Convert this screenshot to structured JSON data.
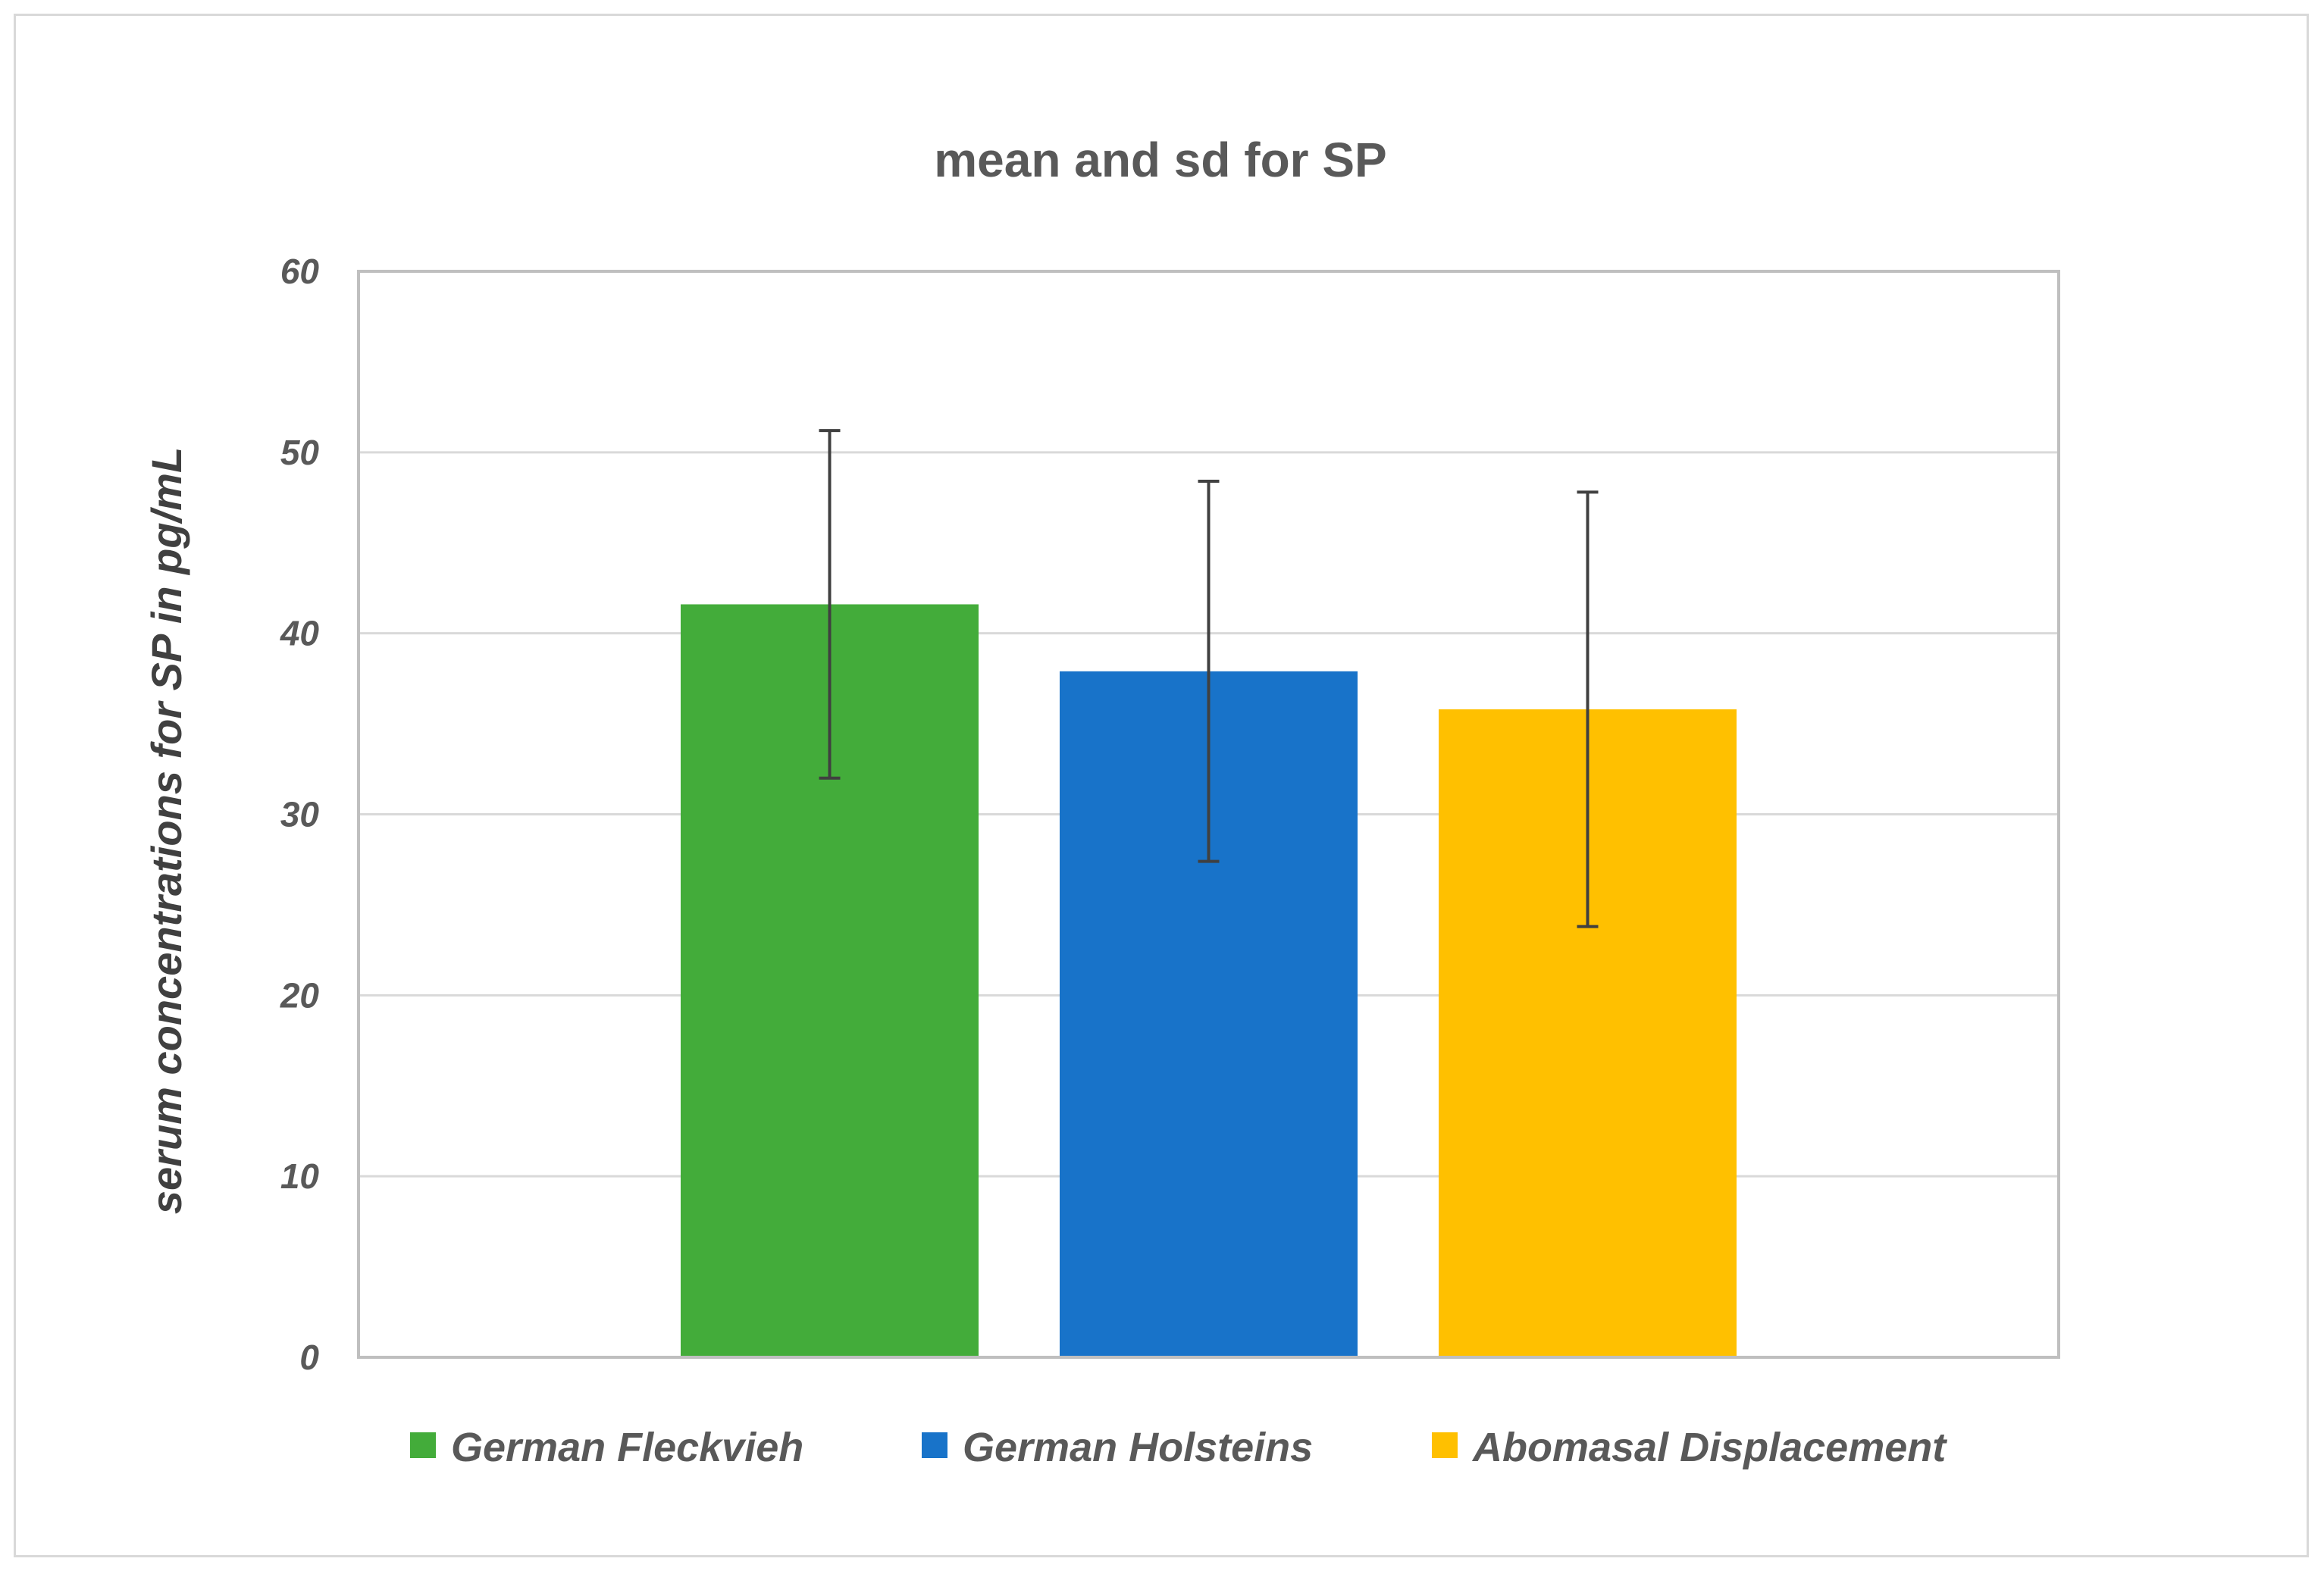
{
  "chart_data": {
    "type": "bar",
    "title": "mean and sd for SP",
    "xlabel": "",
    "ylabel": "serum concentrations for SP in pg/mL",
    "ylim": [
      0,
      60
    ],
    "yticks": [
      "0",
      "10",
      "20",
      "30",
      "40",
      "50",
      "60"
    ],
    "grid": true,
    "legend_position": "bottom",
    "categories": [
      "German Fleckvieh",
      "German Holsteins",
      "Abomasal Displacement"
    ],
    "series": [
      {
        "name": "German Fleckvieh",
        "value": 41.6,
        "sd": 9.6,
        "color": "#43AC3A"
      },
      {
        "name": "German Holsteins",
        "value": 37.9,
        "sd": 10.5,
        "color": "#1873C9"
      },
      {
        "name": "Abomasal Displacement",
        "value": 35.8,
        "sd": 12.0,
        "color": "#FFC000"
      }
    ]
  }
}
